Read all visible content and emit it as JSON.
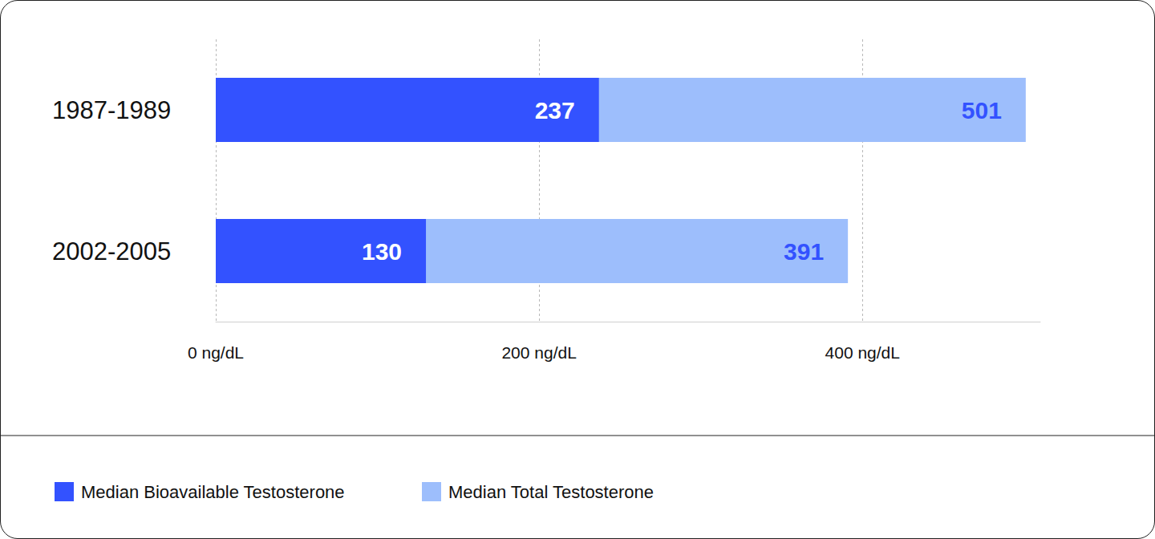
{
  "chart_data": {
    "type": "bar",
    "orientation": "horizontal",
    "categories": [
      "1987-1989",
      "2002-2005"
    ],
    "series": [
      {
        "name": "Median Bioavailable Testosterone",
        "color": "#3352ff",
        "values": [
          237,
          130
        ]
      },
      {
        "name": "Median Total Testosterone",
        "color": "#9dbefc",
        "values": [
          501,
          391
        ]
      }
    ],
    "xlim": [
      0,
      510
    ],
    "xticks": [
      {
        "value": 0,
        "label": "0 ng/dL"
      },
      {
        "value": 200,
        "label": "200 ng/dL"
      },
      {
        "value": 400,
        "label": "400 ng/dL"
      }
    ],
    "grid": true,
    "data_labels": true,
    "legend": "bottom left"
  }
}
